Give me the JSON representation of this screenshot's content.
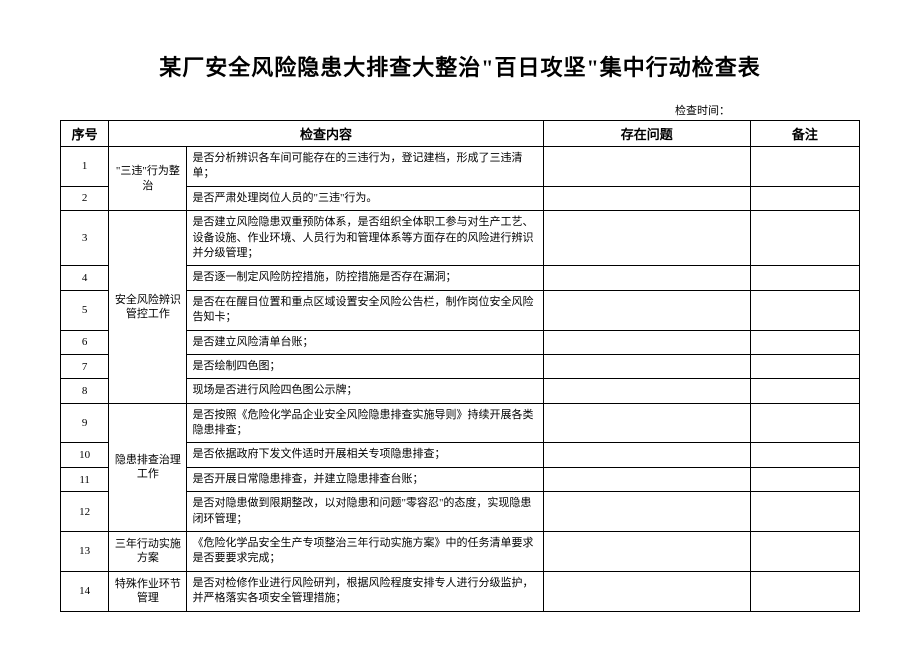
{
  "title": "某厂安全风险隐患大排查大整治\"百日攻坚\"集中行动检查表",
  "check_time_label": "检查时间：",
  "headers": {
    "seq": "序号",
    "content": "检查内容",
    "problem": "存在问题",
    "note": "备注"
  },
  "categories": {
    "cat1": "\"三违\"行为整治",
    "cat2": "安全风险辨识管控工作",
    "cat3": "隐患排查治理工作",
    "cat4": "三年行动实施方案",
    "cat5": "特殊作业环节管理"
  },
  "rows": {
    "r1": {
      "seq": "1",
      "content": "是否分析辨识各车间可能存在的三违行为，登记建档，形成了三违清单；"
    },
    "r2": {
      "seq": "2",
      "content": "是否严肃处理岗位人员的\"三违\"行为。"
    },
    "r3": {
      "seq": "3",
      "content": "是否建立风险隐患双重预防体系，是否组织全体职工参与对生产工艺、设备设施、作业环境、人员行为和管理体系等方面存在的风险进行辨识并分级管理；"
    },
    "r4": {
      "seq": "4",
      "content": "是否逐一制定风险防控措施，防控措施是否存在漏洞；"
    },
    "r5": {
      "seq": "5",
      "content": "是否在在醒目位置和重点区域设置安全风险公告栏，制作岗位安全风险告知卡；"
    },
    "r6": {
      "seq": "6",
      "content": "是否建立风险清单台账；"
    },
    "r7": {
      "seq": "7",
      "content": "是否绘制四色图；"
    },
    "r8": {
      "seq": "8",
      "content": "现场是否进行风险四色图公示牌；"
    },
    "r9": {
      "seq": "9",
      "content": "是否按照《危险化学品企业安全风险隐患排查实施导则》持续开展各类隐患排查；"
    },
    "r10": {
      "seq": "10",
      "content": "是否依据政府下发文件适时开展相关专项隐患排查；"
    },
    "r11": {
      "seq": "11",
      "content": "是否开展日常隐患排查，并建立隐患排查台账；"
    },
    "r12": {
      "seq": "12",
      "content": "是否对隐患做到限期整改，以对隐患和问题\"零容忍\"的态度，实现隐患闭环管理；"
    },
    "r13": {
      "seq": "13",
      "content": "《危险化学品安全生产专项整治三年行动实施方案》中的任务清单要求是否要要求完成；"
    },
    "r14": {
      "seq": "14",
      "content": "是否对检修作业进行风险研判，根据风险程度安排专人进行分级监护，并严格落实各项安全管理措施；"
    }
  }
}
